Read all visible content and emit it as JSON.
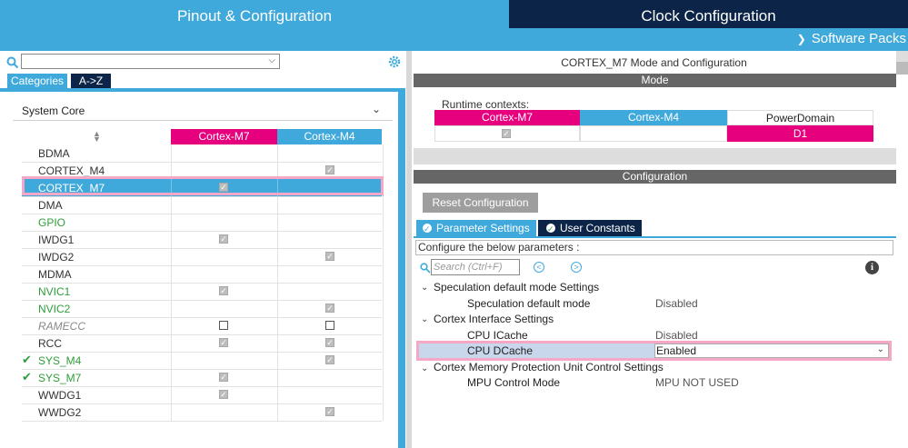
{
  "tabs": {
    "pinout": "Pinout & Configuration",
    "clock": "Clock Configuration"
  },
  "software_packs": "Software Packs",
  "left": {
    "categories_tab": "Categories",
    "az_tab": "A->Z",
    "system_core": "System Core",
    "columns": {
      "m7": "Cortex-M7",
      "m4": "Cortex-M4"
    },
    "rows": [
      {
        "name": "BDMA",
        "m7": "",
        "m4": ""
      },
      {
        "name": "CORTEX_M4",
        "m7": "",
        "m4": "checked"
      },
      {
        "name": "CORTEX_M7",
        "m7": "checked",
        "m4": ""
      },
      {
        "name": "DMA",
        "m7": "",
        "m4": ""
      },
      {
        "name": "GPIO",
        "m7": "",
        "m4": ""
      },
      {
        "name": "IWDG1",
        "m7": "checked",
        "m4": ""
      },
      {
        "name": "IWDG2",
        "m7": "",
        "m4": "checked"
      },
      {
        "name": "MDMA",
        "m7": "",
        "m4": ""
      },
      {
        "name": "NVIC1",
        "m7": "checked",
        "m4": ""
      },
      {
        "name": "NVIC2",
        "m7": "",
        "m4": "checked"
      },
      {
        "name": "RAMECC",
        "m7": "empty",
        "m4": "empty"
      },
      {
        "name": "RCC",
        "m7": "checked",
        "m4": "checked"
      },
      {
        "name": "SYS_M4",
        "m7": "",
        "m4": "checked"
      },
      {
        "name": "SYS_M7",
        "m7": "checked",
        "m4": ""
      },
      {
        "name": "WWDG1",
        "m7": "checked",
        "m4": ""
      },
      {
        "name": "WWDG2",
        "m7": "",
        "m4": "checked"
      }
    ]
  },
  "right": {
    "mode_title": "CORTEX_M7 Mode and Configuration",
    "mode_bar": "Mode",
    "runtime_label": "Runtime contexts:",
    "runtime": {
      "m7": "Cortex-M7",
      "m4": "Cortex-M4",
      "power_domain": "PowerDomain",
      "d1": "D1"
    },
    "config_bar": "Configuration",
    "reset_button": "Reset Configuration",
    "param_tab": "Parameter Settings",
    "user_tab": "User Constants",
    "config_desc": "Configure the below parameters :",
    "search_placeholder": "Search (Ctrl+F)",
    "groups": {
      "g1": "Speculation default mode Settings",
      "g1_p1": "Speculation default mode",
      "g1_v1": "Disabled",
      "g2": "Cortex Interface Settings",
      "g2_p1": "CPU ICache",
      "g2_v1": "Disabled",
      "g2_p2": "CPU DCache",
      "g2_v2": "Enabled",
      "g3": "Cortex Memory Protection Unit Control Settings",
      "g3_p1": "MPU Control Mode",
      "g3_v1": "MPU NOT USED"
    }
  },
  "colors": {
    "accent_blue": "#3fa9dc",
    "navy": "#0b2447",
    "magenta": "#e6007e",
    "green": "#2e9e3a",
    "highlight": "#f4a8c6"
  }
}
